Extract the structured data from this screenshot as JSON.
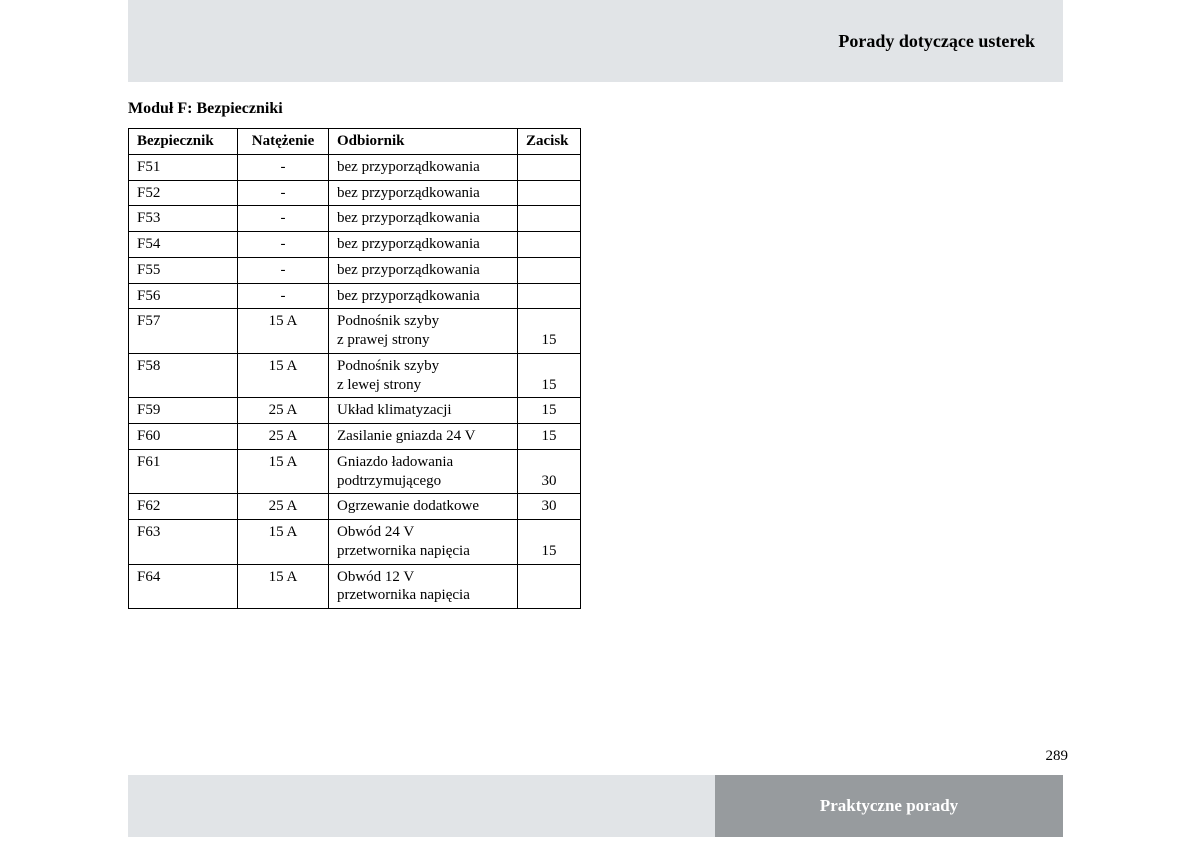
{
  "header": {
    "title": "Porady dotyczące usterek"
  },
  "section": {
    "title": "Moduł F: Bezpieczniki"
  },
  "table": {
    "columns": [
      "Bezpiecznik",
      "Natężenie",
      "Odbiornik",
      "Zacisk"
    ],
    "rows": [
      {
        "fuse": "F51",
        "amp": "-",
        "receiver": "bez przyporządkowania",
        "terminal": ""
      },
      {
        "fuse": "F52",
        "amp": "-",
        "receiver": "bez przyporządkowania",
        "terminal": ""
      },
      {
        "fuse": "F53",
        "amp": "-",
        "receiver": "bez przyporządkowania",
        "terminal": ""
      },
      {
        "fuse": "F54",
        "amp": "-",
        "receiver": "bez przyporządkowania",
        "terminal": ""
      },
      {
        "fuse": "F55",
        "amp": "-",
        "receiver": "bez przyporządkowania",
        "terminal": ""
      },
      {
        "fuse": "F56",
        "amp": "-",
        "receiver": "bez przyporządkowania",
        "terminal": ""
      },
      {
        "fuse": "F57",
        "amp": "15 A",
        "receiver": "Podnośnik szyby\nz prawej strony",
        "terminal": "15"
      },
      {
        "fuse": "F58",
        "amp": "15 A",
        "receiver": "Podnośnik szyby\nz lewej strony",
        "terminal": "15"
      },
      {
        "fuse": "F59",
        "amp": "25 A",
        "receiver": "Układ klimatyzacji",
        "terminal": "15"
      },
      {
        "fuse": "F60",
        "amp": "25 A",
        "receiver": "Zasilanie gniazda 24 V",
        "terminal": "15"
      },
      {
        "fuse": "F61",
        "amp": "15 A",
        "receiver": "Gniazdo ładowania\npodtrzymującego",
        "terminal": "30"
      },
      {
        "fuse": "F62",
        "amp": "25 A",
        "receiver": "Ogrzewanie dodatkowe",
        "terminal": "30"
      },
      {
        "fuse": "F63",
        "amp": "15 A",
        "receiver": "Obwód 24 V\nprzetwornika napięcia",
        "terminal": "15"
      },
      {
        "fuse": "F64",
        "amp": "15 A",
        "receiver": "Obwód 12 V\nprzetwornika napięcia",
        "terminal": ""
      }
    ]
  },
  "page_number": "289",
  "footer": {
    "label": "Praktyczne porady"
  },
  "colors": {
    "header_bg": "#e1e4e7",
    "footer_left_bg": "#e1e4e7",
    "footer_right_bg": "#979b9e",
    "footer_right_text": "#ffffff",
    "border": "#000000",
    "text": "#000000",
    "page_bg": "#ffffff"
  }
}
